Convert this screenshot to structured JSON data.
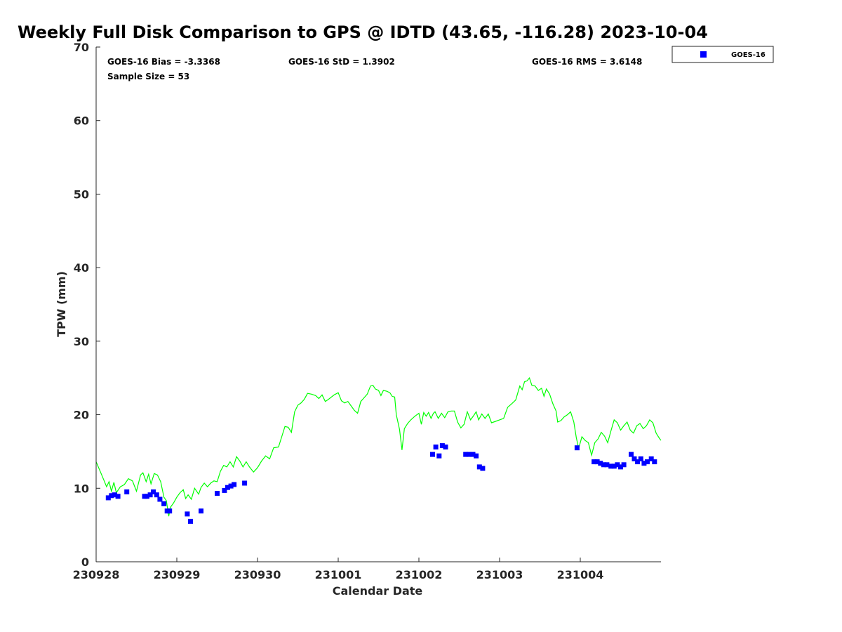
{
  "chart_data": {
    "type": "scatter",
    "title": "Weekly Full Disk Comparison to GPS @ IDTD (43.65, -116.28) 2023-10-04",
    "xlabel": "Calendar Date",
    "ylabel": "TPW (mm)",
    "x_unit": "days",
    "xlim": [
      0,
      7
    ],
    "ylim": [
      0,
      70
    ],
    "x_tick_values": [
      0,
      1,
      2,
      3,
      4,
      5,
      6
    ],
    "x_tick_labels": [
      "230928",
      "230929",
      "230930",
      "231001",
      "231002",
      "231003",
      "231004"
    ],
    "y_ticks": [
      0,
      10,
      20,
      30,
      40,
      50,
      60,
      70
    ],
    "grid": false,
    "legend_position": "top-right",
    "stats": {
      "bias": "GOES-16 Bias = -3.3368",
      "std": "GOES-16 StD = 1.3902",
      "rms": "GOES-16 RMS = 3.6148",
      "sample": "Sample Size = 53"
    },
    "series": [
      {
        "name": "GOES-16",
        "kind": "markers",
        "color": "#0000ff",
        "points": [
          [
            0.15,
            8.7
          ],
          [
            0.19,
            9.0
          ],
          [
            0.23,
            9.1
          ],
          [
            0.27,
            8.9
          ],
          [
            0.38,
            9.5
          ],
          [
            0.6,
            8.9
          ],
          [
            0.63,
            8.9
          ],
          [
            0.67,
            9.1
          ],
          [
            0.71,
            9.5
          ],
          [
            0.75,
            9.1
          ],
          [
            0.79,
            8.5
          ],
          [
            0.84,
            7.9
          ],
          [
            0.88,
            6.9
          ],
          [
            0.91,
            6.9
          ],
          [
            1.13,
            6.5
          ],
          [
            1.17,
            5.5
          ],
          [
            1.3,
            6.9
          ],
          [
            1.5,
            9.3
          ],
          [
            1.59,
            9.7
          ],
          [
            1.63,
            10.1
          ],
          [
            1.67,
            10.3
          ],
          [
            1.71,
            10.5
          ],
          [
            1.84,
            10.7
          ],
          [
            4.17,
            14.6
          ],
          [
            4.21,
            15.6
          ],
          [
            4.25,
            14.4
          ],
          [
            4.29,
            15.8
          ],
          [
            4.33,
            15.6
          ],
          [
            4.58,
            14.6
          ],
          [
            4.62,
            14.6
          ],
          [
            4.67,
            14.6
          ],
          [
            4.71,
            14.4
          ],
          [
            4.75,
            12.9
          ],
          [
            4.79,
            12.7
          ],
          [
            5.96,
            15.5
          ],
          [
            6.17,
            13.6
          ],
          [
            6.21,
            13.6
          ],
          [
            6.25,
            13.4
          ],
          [
            6.29,
            13.2
          ],
          [
            6.33,
            13.2
          ],
          [
            6.38,
            13.0
          ],
          [
            6.42,
            13.0
          ],
          [
            6.46,
            13.2
          ],
          [
            6.5,
            12.9
          ],
          [
            6.54,
            13.2
          ],
          [
            6.63,
            14.6
          ],
          [
            6.67,
            14.0
          ],
          [
            6.71,
            13.6
          ],
          [
            6.75,
            14.0
          ],
          [
            6.79,
            13.4
          ],
          [
            6.83,
            13.6
          ],
          [
            6.88,
            14.0
          ],
          [
            6.92,
            13.6
          ]
        ]
      },
      {
        "kind": "line",
        "color": "#00ff00",
        "points": [
          [
            0.0,
            13.6
          ],
          [
            0.05,
            12.3
          ],
          [
            0.1,
            11.0
          ],
          [
            0.13,
            10.2
          ],
          [
            0.16,
            10.9
          ],
          [
            0.19,
            9.6
          ],
          [
            0.22,
            10.8
          ],
          [
            0.25,
            9.4
          ],
          [
            0.3,
            10.2
          ],
          [
            0.35,
            10.5
          ],
          [
            0.4,
            11.3
          ],
          [
            0.45,
            11.0
          ],
          [
            0.5,
            9.6
          ],
          [
            0.55,
            11.8
          ],
          [
            0.58,
            12.1
          ],
          [
            0.62,
            10.9
          ],
          [
            0.65,
            11.9
          ],
          [
            0.68,
            10.6
          ],
          [
            0.72,
            12.0
          ],
          [
            0.76,
            11.8
          ],
          [
            0.8,
            10.9
          ],
          [
            0.84,
            8.8
          ],
          [
            0.87,
            8.3
          ],
          [
            0.9,
            6.2
          ],
          [
            0.92,
            7.4
          ],
          [
            0.96,
            8.0
          ],
          [
            1.0,
            8.8
          ],
          [
            1.04,
            9.4
          ],
          [
            1.08,
            9.8
          ],
          [
            1.11,
            8.6
          ],
          [
            1.14,
            9.1
          ],
          [
            1.18,
            8.5
          ],
          [
            1.22,
            10.0
          ],
          [
            1.27,
            9.2
          ],
          [
            1.3,
            10.1
          ],
          [
            1.34,
            10.7
          ],
          [
            1.38,
            10.2
          ],
          [
            1.42,
            10.7
          ],
          [
            1.46,
            11.0
          ],
          [
            1.5,
            10.9
          ],
          [
            1.54,
            12.3
          ],
          [
            1.58,
            13.1
          ],
          [
            1.62,
            12.9
          ],
          [
            1.66,
            13.6
          ],
          [
            1.7,
            12.9
          ],
          [
            1.74,
            14.3
          ],
          [
            1.78,
            13.7
          ],
          [
            1.82,
            12.9
          ],
          [
            1.86,
            13.6
          ],
          [
            1.9,
            12.9
          ],
          [
            1.95,
            12.2
          ],
          [
            2.0,
            12.8
          ],
          [
            2.05,
            13.7
          ],
          [
            2.1,
            14.4
          ],
          [
            2.15,
            14.0
          ],
          [
            2.2,
            15.5
          ],
          [
            2.26,
            15.6
          ],
          [
            2.3,
            17.0
          ],
          [
            2.34,
            18.4
          ],
          [
            2.38,
            18.3
          ],
          [
            2.42,
            17.6
          ],
          [
            2.46,
            20.4
          ],
          [
            2.5,
            21.3
          ],
          [
            2.54,
            21.6
          ],
          [
            2.58,
            22.1
          ],
          [
            2.62,
            22.9
          ],
          [
            2.67,
            22.8
          ],
          [
            2.72,
            22.6
          ],
          [
            2.76,
            22.2
          ],
          [
            2.8,
            22.7
          ],
          [
            2.84,
            21.8
          ],
          [
            2.88,
            22.1
          ],
          [
            2.95,
            22.7
          ],
          [
            3.0,
            23.0
          ],
          [
            3.04,
            21.9
          ],
          [
            3.08,
            21.6
          ],
          [
            3.12,
            21.8
          ],
          [
            3.16,
            21.2
          ],
          [
            3.2,
            20.6
          ],
          [
            3.24,
            20.2
          ],
          [
            3.28,
            21.8
          ],
          [
            3.32,
            22.3
          ],
          [
            3.36,
            22.8
          ],
          [
            3.4,
            23.9
          ],
          [
            3.43,
            24.0
          ],
          [
            3.46,
            23.5
          ],
          [
            3.5,
            23.3
          ],
          [
            3.53,
            22.6
          ],
          [
            3.56,
            23.3
          ],
          [
            3.6,
            23.2
          ],
          [
            3.64,
            23.0
          ],
          [
            3.67,
            22.5
          ],
          [
            3.7,
            22.4
          ],
          [
            3.72,
            20.0
          ],
          [
            3.76,
            18.0
          ],
          [
            3.79,
            15.2
          ],
          [
            3.82,
            18.1
          ],
          [
            3.86,
            18.8
          ],
          [
            3.9,
            19.3
          ],
          [
            3.95,
            19.8
          ],
          [
            4.0,
            20.2
          ],
          [
            4.03,
            18.7
          ],
          [
            4.06,
            20.3
          ],
          [
            4.09,
            19.8
          ],
          [
            4.12,
            20.3
          ],
          [
            4.15,
            19.5
          ],
          [
            4.18,
            20.2
          ],
          [
            4.2,
            20.4
          ],
          [
            4.24,
            19.5
          ],
          [
            4.28,
            20.2
          ],
          [
            4.32,
            19.6
          ],
          [
            4.36,
            20.4
          ],
          [
            4.4,
            20.5
          ],
          [
            4.44,
            20.5
          ],
          [
            4.48,
            19.0
          ],
          [
            4.52,
            18.2
          ],
          [
            4.56,
            18.7
          ],
          [
            4.6,
            20.4
          ],
          [
            4.64,
            19.3
          ],
          [
            4.68,
            19.9
          ],
          [
            4.71,
            20.4
          ],
          [
            4.74,
            19.3
          ],
          [
            4.78,
            20.1
          ],
          [
            4.82,
            19.5
          ],
          [
            4.86,
            20.1
          ],
          [
            4.9,
            18.9
          ],
          [
            4.95,
            19.1
          ],
          [
            5.0,
            19.3
          ],
          [
            5.05,
            19.5
          ],
          [
            5.1,
            21.0
          ],
          [
            5.15,
            21.5
          ],
          [
            5.2,
            22.0
          ],
          [
            5.25,
            23.9
          ],
          [
            5.28,
            23.4
          ],
          [
            5.31,
            24.5
          ],
          [
            5.34,
            24.6
          ],
          [
            5.37,
            25.0
          ],
          [
            5.4,
            24.0
          ],
          [
            5.44,
            23.9
          ],
          [
            5.48,
            23.3
          ],
          [
            5.52,
            23.6
          ],
          [
            5.55,
            22.5
          ],
          [
            5.58,
            23.5
          ],
          [
            5.62,
            22.8
          ],
          [
            5.66,
            21.5
          ],
          [
            5.7,
            20.5
          ],
          [
            5.72,
            19.0
          ],
          [
            5.76,
            19.2
          ],
          [
            5.8,
            19.7
          ],
          [
            5.84,
            20.0
          ],
          [
            5.88,
            20.4
          ],
          [
            5.92,
            19.0
          ],
          [
            5.95,
            16.9
          ],
          [
            5.98,
            15.4
          ],
          [
            6.02,
            17.0
          ],
          [
            6.06,
            16.5
          ],
          [
            6.1,
            16.2
          ],
          [
            6.14,
            14.5
          ],
          [
            6.18,
            16.2
          ],
          [
            6.22,
            16.7
          ],
          [
            6.26,
            17.6
          ],
          [
            6.3,
            17.1
          ],
          [
            6.34,
            16.2
          ],
          [
            6.38,
            17.8
          ],
          [
            6.42,
            19.3
          ],
          [
            6.46,
            18.9
          ],
          [
            6.5,
            17.9
          ],
          [
            6.54,
            18.5
          ],
          [
            6.58,
            19.0
          ],
          [
            6.62,
            17.9
          ],
          [
            6.66,
            17.5
          ],
          [
            6.7,
            18.5
          ],
          [
            6.74,
            18.8
          ],
          [
            6.78,
            18.1
          ],
          [
            6.82,
            18.5
          ],
          [
            6.86,
            19.3
          ],
          [
            6.9,
            18.9
          ],
          [
            6.94,
            17.5
          ],
          [
            6.98,
            16.8
          ],
          [
            7.0,
            16.5
          ]
        ]
      }
    ]
  }
}
